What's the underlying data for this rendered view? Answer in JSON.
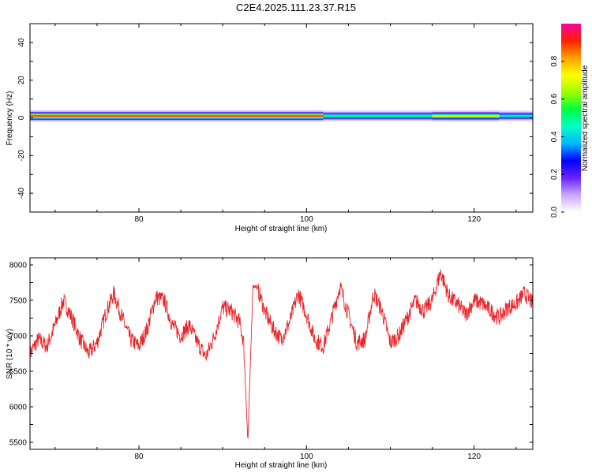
{
  "title": "C2E4.2025.111.23.37.R15",
  "spectrogram": {
    "xlabel": "Height of straight line (km)",
    "ylabel": "Frequency (Hz)",
    "xlim": [
      67,
      127
    ],
    "ylim": [
      -50,
      50
    ],
    "xticks": [
      "80",
      "100",
      "120"
    ],
    "yticks": [
      "40",
      "20",
      "0",
      "-20",
      "-40"
    ]
  },
  "colorbar": {
    "label": "Normalized spectral amplitude",
    "ticks": [
      "0.0",
      "0.2",
      "0.4",
      "0.6",
      "0.8"
    ],
    "colors": [
      "#ffffff",
      "#c9a6ff",
      "#6a22ff",
      "#0000ff",
      "#00b8ff",
      "#00ffc8",
      "#00ff40",
      "#a0ff00",
      "#ffff00",
      "#ffa000",
      "#ff2000",
      "#ff00a0"
    ]
  },
  "snr": {
    "xlabel": "Height of straight line (km)",
    "ylabel": "SNR (10 * v/v)",
    "xlim": [
      67,
      127
    ],
    "ylim": [
      5400,
      8100
    ],
    "xticks": [
      "80",
      "100",
      "120"
    ],
    "yticks": [
      "8000",
      "7500",
      "7000",
      "6500",
      "6000",
      "5500"
    ],
    "line_color": "#e8262a"
  },
  "chart_data": [
    {
      "type": "heatmap",
      "title": "C2E4.2025.111.23.37.R15",
      "xlabel": "Height of straight line (km)",
      "ylabel": "Frequency (Hz)",
      "xlim": [
        67,
        127
      ],
      "ylim": [
        -50,
        50
      ],
      "band_center_hz": 1,
      "band_segments": [
        {
          "x": [
            67,
            102
          ],
          "peak_amplitude": 0.95
        },
        {
          "x": [
            102,
            115
          ],
          "peak_amplitude": 0.55
        },
        {
          "x": [
            115,
            123
          ],
          "peak_amplitude": 0.75
        },
        {
          "x": [
            123,
            127
          ],
          "peak_amplitude": 0.5
        }
      ],
      "colorbar_range": [
        0,
        1
      ]
    },
    {
      "type": "line",
      "xlabel": "Height of straight line (km)",
      "ylabel": "SNR (10 * v/v)",
      "xlim": [
        67,
        127
      ],
      "ylim": [
        5400,
        8100
      ],
      "x": [
        67,
        68,
        69,
        70,
        71,
        72,
        73,
        74,
        75,
        76,
        77,
        78,
        79,
        80,
        81,
        82,
        83,
        84,
        85,
        86,
        87,
        88,
        89,
        90,
        91,
        92,
        92.5,
        93,
        93.3,
        93.6,
        94,
        94.5,
        95,
        96,
        97,
        98,
        99,
        100,
        101,
        102,
        103,
        104,
        105,
        106,
        107,
        108,
        109,
        110,
        111,
        112,
        113,
        114,
        115,
        116,
        117,
        118,
        119,
        120,
        121,
        122,
        123,
        124,
        125,
        126,
        127
      ],
      "y": [
        6750,
        6950,
        6850,
        7150,
        7500,
        7250,
        6950,
        6750,
        6900,
        7300,
        7600,
        7250,
        6950,
        6850,
        7100,
        7550,
        7500,
        7150,
        7000,
        7150,
        6900,
        6700,
        7000,
        7400,
        7350,
        7200,
        6900,
        5500,
        6600,
        7700,
        7700,
        7550,
        7350,
        7100,
        6950,
        7200,
        7600,
        7300,
        6950,
        6850,
        7250,
        7700,
        7300,
        6900,
        6950,
        7600,
        7350,
        6900,
        7000,
        7250,
        7500,
        7350,
        7500,
        7900,
        7550,
        7450,
        7300,
        7500,
        7450,
        7350,
        7250,
        7400,
        7450,
        7600,
        7450
      ]
    }
  ]
}
